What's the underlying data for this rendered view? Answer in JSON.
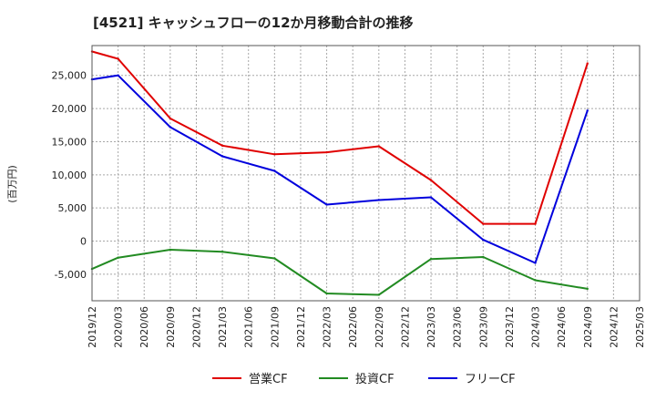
{
  "chart_data": {
    "type": "line",
    "title": "[4521]  キャッシュフローの12か月移動合計の推移",
    "ylabel": "(百万円)",
    "xlabel": "",
    "ylim": [
      -9000,
      29500
    ],
    "yticks": [
      -5000,
      0,
      5000,
      10000,
      15000,
      20000,
      25000
    ],
    "ytick_labels": [
      "-5,000",
      "0",
      "5,000",
      "10,000",
      "15,000",
      "20,000",
      "25,000"
    ],
    "grid": true,
    "legend_position": "bottom",
    "categories": [
      "2019/12",
      "2020/03",
      "2020/06",
      "2020/09",
      "2020/12",
      "2021/03",
      "2021/06",
      "2021/09",
      "2021/12",
      "2022/03",
      "2022/06",
      "2022/09",
      "2022/12",
      "2023/03",
      "2023/06",
      "2023/09",
      "2023/12",
      "2024/03",
      "2024/06",
      "2024/09",
      "2024/12",
      "2025/03"
    ],
    "series": [
      {
        "name": "営業CF",
        "color": "#e00000",
        "values": [
          28600,
          27500,
          null,
          18500,
          null,
          14400,
          null,
          13100,
          null,
          13400,
          null,
          14300,
          null,
          9200,
          null,
          2600,
          null,
          2600,
          null,
          26800,
          null,
          null
        ]
      },
      {
        "name": "投資CF",
        "color": "#228B22",
        "values": [
          -4200,
          -2500,
          null,
          -1300,
          null,
          -1600,
          null,
          -2600,
          null,
          -7900,
          null,
          -8100,
          null,
          -2700,
          null,
          -2400,
          null,
          -5900,
          null,
          -7200,
          null,
          null
        ]
      },
      {
        "name": "フリーCF",
        "color": "#0000dd",
        "values": [
          24400,
          25000,
          null,
          17200,
          null,
          12800,
          null,
          10600,
          null,
          5500,
          null,
          6200,
          null,
          6600,
          null,
          200,
          null,
          -3300,
          null,
          19700,
          null,
          null
        ]
      }
    ]
  }
}
